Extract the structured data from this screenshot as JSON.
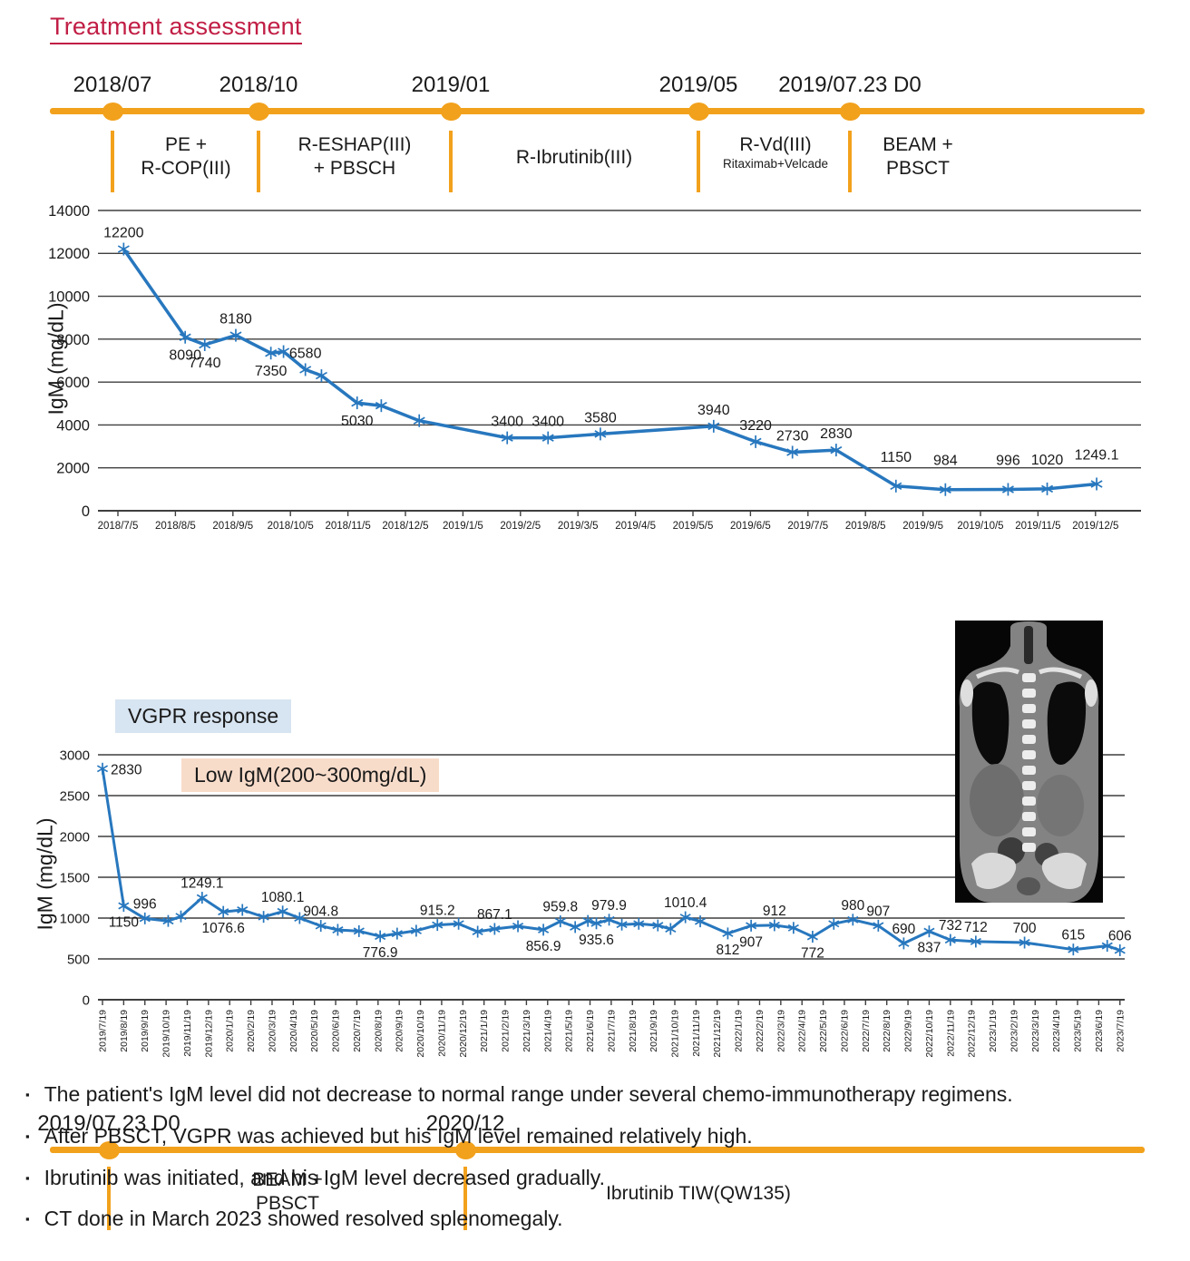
{
  "title": "Treatment assessment",
  "colors": {
    "accent_orange": "#F2A11C",
    "title_red": "#C11E45",
    "line_blue": "#2777BE",
    "vgpr_bg": "#D7E4F1",
    "low_igm_bg": "#F8DCCA",
    "grid_gray": "#3F3F3F"
  },
  "timeline1": {
    "milestones": [
      "2018/07",
      "2018/10",
      "2019/01",
      "2019/05",
      "2019/07.23 D0"
    ],
    "segments": [
      {
        "lines": [
          "PE +",
          "R-COP(III)"
        ]
      },
      {
        "lines": [
          "R-ESHAP(III)",
          "+ PBSCH"
        ]
      },
      {
        "lines": [
          "R-Ibrutinib(III)"
        ]
      },
      {
        "lines": [
          "R-Vd(III)"
        ],
        "sub": "Ritaximab+Velcade"
      },
      {
        "lines": [
          "BEAM +",
          "PBSCT"
        ]
      }
    ]
  },
  "timeline2": {
    "milestones": [
      "2019/07.23 D0",
      "2020/12"
    ],
    "segments": [
      {
        "lines": [
          "BEAM +",
          "PBSCT"
        ]
      },
      {
        "lines": [
          "Ibrutinib TIW(QW135)"
        ]
      }
    ]
  },
  "annotations": {
    "vgpr": "VGPR response",
    "low_igm": "Low IgM(200~300mg/dL)"
  },
  "chart_data": [
    {
      "type": "line",
      "title": "",
      "xlabel": "",
      "ylabel": "IgM (mg/dL)",
      "ylim": [
        0,
        14000
      ],
      "ytick_step": 2000,
      "grid": true,
      "legend": "none",
      "line_color": "#2777BE",
      "x_tick_labels": [
        "2018/7/5",
        "2018/8/5",
        "2018/9/5",
        "2018/10/5",
        "2018/11/5",
        "2018/12/5",
        "2019/1/5",
        "2019/2/5",
        "2019/3/5",
        "2019/4/5",
        "2019/5/5",
        "2019/6/5",
        "2019/7/5",
        "2019/8/5",
        "2019/9/5",
        "2019/10/5",
        "2019/11/5",
        "2019/12/5"
      ],
      "points": [
        {
          "x": 0.1,
          "y": 12200,
          "label": "12200",
          "pos": "above"
        },
        {
          "x": 1.17,
          "y": 8090,
          "label": "8090",
          "pos": "below"
        },
        {
          "x": 1.51,
          "y": 7740,
          "label": "7740",
          "pos": "below"
        },
        {
          "x": 2.05,
          "y": 8180,
          "label": "8180",
          "pos": "above"
        },
        {
          "x": 2.66,
          "y": 7350,
          "label": "7350",
          "pos": "below"
        },
        {
          "x": 2.88,
          "y": 7420
        },
        {
          "x": 3.26,
          "y": 6580,
          "label": "6580",
          "pos": "above"
        },
        {
          "x": 3.54,
          "y": 6300
        },
        {
          "x": 4.16,
          "y": 5030,
          "label": "5030",
          "pos": "below"
        },
        {
          "x": 4.58,
          "y": 4900
        },
        {
          "x": 5.24,
          "y": 4200
        },
        {
          "x": 6.77,
          "y": 3400,
          "label": "3400",
          "pos": "above"
        },
        {
          "x": 7.48,
          "y": 3400,
          "label": "3400",
          "pos": "above"
        },
        {
          "x": 8.39,
          "y": 3580,
          "label": "3580",
          "pos": "above"
        },
        {
          "x": 10.36,
          "y": 3940,
          "label": "3940",
          "pos": "above"
        },
        {
          "x": 11.09,
          "y": 3220,
          "label": "3220",
          "pos": "above"
        },
        {
          "x": 11.73,
          "y": 2730,
          "label": "2730",
          "pos": "above"
        },
        {
          "x": 12.49,
          "y": 2830,
          "label": "2830",
          "pos": "above"
        },
        {
          "x": 13.53,
          "y": 1150,
          "label": "1150",
          "pos": "high"
        },
        {
          "x": 14.39,
          "y": 984,
          "label": "984",
          "pos": "high"
        },
        {
          "x": 15.48,
          "y": 996,
          "label": "996",
          "pos": "high"
        },
        {
          "x": 16.16,
          "y": 1020,
          "label": "1020",
          "pos": "high"
        },
        {
          "x": 17.02,
          "y": 1249.1,
          "label": "1249.1",
          "pos": "high"
        }
      ]
    },
    {
      "type": "line",
      "title": "",
      "xlabel": "",
      "ylabel": "IgM (mg/dL)",
      "ylim": [
        0,
        3000
      ],
      "ytick_step": 500,
      "grid": true,
      "legend": "none",
      "line_color": "#2777BE",
      "x_tick_labels": [
        "2019/7/19",
        "2019/8/19",
        "2019/9/19",
        "2019/10/19",
        "2019/11/19",
        "2019/12/19",
        "2020/1/19",
        "2020/2/19",
        "2020/3/19",
        "2020/4/19",
        "2020/5/19",
        "2020/6/19",
        "2020/7/19",
        "2020/8/19",
        "2020/9/19",
        "2020/10/19",
        "2020/11/19",
        "2020/12/19",
        "2021/1/19",
        "2021/2/19",
        "2021/3/19",
        "2021/4/19",
        "2021/5/19",
        "2021/6/19",
        "2021/7/19",
        "2021/8/19",
        "2021/9/19",
        "2021/10/19",
        "2021/11/19",
        "2021/12/19",
        "2022/1/19",
        "2022/2/19",
        "2022/3/19",
        "2022/4/19",
        "2022/5/19",
        "2022/6/19",
        "2022/7/19",
        "2022/8/19",
        "2022/9/19",
        "2022/10/19",
        "2022/11/19",
        "2022/12/19",
        "2023/1/19",
        "2023/2/19",
        "2023/3/19",
        "2023/4/19",
        "2023/5/19",
        "2023/6/19",
        "2023/7/19"
      ],
      "points": [
        {
          "x": 0,
          "y": 2830,
          "label": "2830",
          "pos": "right"
        },
        {
          "x": 1,
          "y": 1150,
          "label": "1150",
          "pos": "below"
        },
        {
          "x": 2,
          "y": 996,
          "label": "996",
          "pos": "above"
        },
        {
          "x": 3.1,
          "y": 965
        },
        {
          "x": 3.7,
          "y": 1020
        },
        {
          "x": 4.7,
          "y": 1249.1,
          "label": "1249.1",
          "pos": "above"
        },
        {
          "x": 5.7,
          "y": 1076.6,
          "label": "1076.6",
          "pos": "below"
        },
        {
          "x": 6.6,
          "y": 1100
        },
        {
          "x": 7.6,
          "y": 1015
        },
        {
          "x": 8.5,
          "y": 1080.1,
          "label": "1080.1",
          "pos": "above"
        },
        {
          "x": 9.3,
          "y": 1000
        },
        {
          "x": 10.3,
          "y": 904.8,
          "label": "904.8",
          "pos": "above"
        },
        {
          "x": 11.1,
          "y": 856
        },
        {
          "x": 12.1,
          "y": 840
        },
        {
          "x": 13.1,
          "y": 776.9,
          "label": "776.9",
          "pos": "below"
        },
        {
          "x": 13.9,
          "y": 810
        },
        {
          "x": 14.8,
          "y": 845
        },
        {
          "x": 15.8,
          "y": 915.2,
          "label": "915.2",
          "pos": "above"
        },
        {
          "x": 16.8,
          "y": 930
        },
        {
          "x": 17.7,
          "y": 833
        },
        {
          "x": 18.5,
          "y": 867.1,
          "label": "867.1",
          "pos": "above"
        },
        {
          "x": 19.6,
          "y": 900
        },
        {
          "x": 20.8,
          "y": 856.9,
          "label": "856.9",
          "pos": "below"
        },
        {
          "x": 21.6,
          "y": 959.8,
          "label": "959.8",
          "pos": "above"
        },
        {
          "x": 22.3,
          "y": 890
        },
        {
          "x": 22.9,
          "y": 965
        },
        {
          "x": 23.3,
          "y": 935.6,
          "label": "935.6",
          "pos": "below"
        },
        {
          "x": 23.9,
          "y": 979.9,
          "label": "979.9",
          "pos": "above"
        },
        {
          "x": 24.5,
          "y": 920
        },
        {
          "x": 25.3,
          "y": 930
        },
        {
          "x": 26.2,
          "y": 910
        },
        {
          "x": 26.8,
          "y": 867
        },
        {
          "x": 27.5,
          "y": 1010.4,
          "label": "1010.4",
          "pos": "above"
        },
        {
          "x": 28.2,
          "y": 960
        },
        {
          "x": 29.5,
          "y": 812,
          "label": "812",
          "pos": "below"
        },
        {
          "x": 30.6,
          "y": 907,
          "label": "907",
          "pos": "below"
        },
        {
          "x": 31.7,
          "y": 912,
          "label": "912",
          "pos": "above"
        },
        {
          "x": 32.6,
          "y": 880
        },
        {
          "x": 33.5,
          "y": 772,
          "label": "772",
          "pos": "below"
        },
        {
          "x": 34.5,
          "y": 930
        },
        {
          "x": 35.4,
          "y": 980,
          "label": "980",
          "pos": "above"
        },
        {
          "x": 36.6,
          "y": 907,
          "label": "907",
          "pos": "above"
        },
        {
          "x": 37.8,
          "y": 690,
          "label": "690",
          "pos": "above"
        },
        {
          "x": 39.0,
          "y": 837,
          "label": "837",
          "pos": "below"
        },
        {
          "x": 40.0,
          "y": 732,
          "label": "732",
          "pos": "above"
        },
        {
          "x": 41.2,
          "y": 712,
          "label": "712",
          "pos": "above"
        },
        {
          "x": 43.5,
          "y": 700,
          "label": "700",
          "pos": "above"
        },
        {
          "x": 45.8,
          "y": 615,
          "label": "615",
          "pos": "above"
        },
        {
          "x": 47.4,
          "y": 660
        },
        {
          "x": 48,
          "y": 606,
          "label": "606",
          "pos": "above"
        }
      ]
    }
  ],
  "bullets": [
    "The patient's IgM level did not decrease to normal range under several chemo-immunotherapy regimens.",
    "After PBSCT, VGPR was achieved but his IgM level remained relatively high.",
    "Ibrutinib was initiated, and his IgM level decreased gradually.",
    "CT done in March 2023 showed resolved splenomegaly."
  ]
}
